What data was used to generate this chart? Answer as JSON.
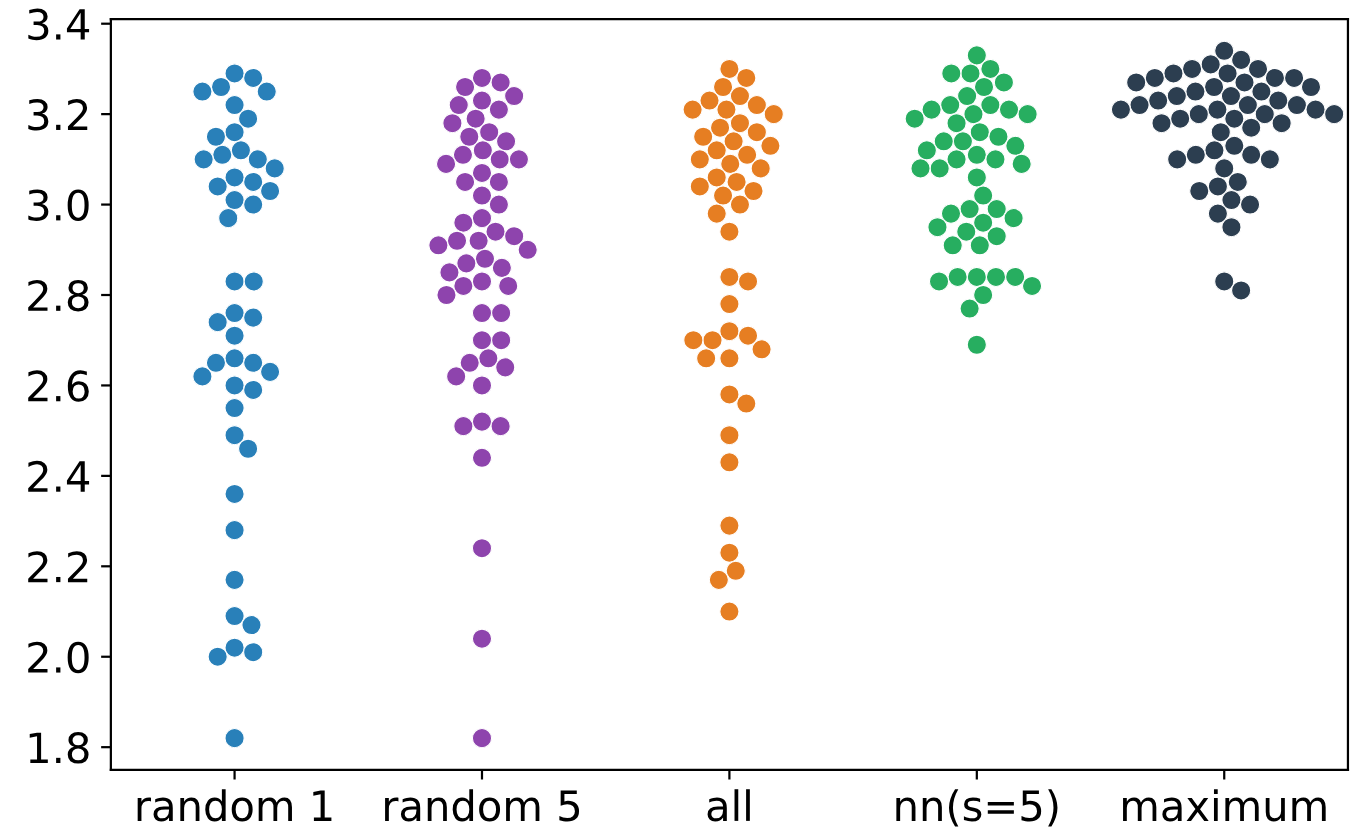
{
  "chart_data": {
    "type": "scatter",
    "categories": [
      "random 1",
      "random 5",
      "all",
      "nn(s=5)",
      "maximum"
    ],
    "ylim": [
      1.75,
      3.41
    ],
    "yticks": [
      1.8,
      {
        "value": 2,
        "label": "2.0"
      },
      2.2,
      2.4,
      2.6,
      2.8,
      {
        "value": 3,
        "label": "3.0"
      },
      3.2,
      3.4
    ],
    "grid": false,
    "marker": "circle",
    "series": [
      {
        "color": "#2980b9",
        "x": [
          "random 1",
          "random 1",
          "random 1",
          "random 1",
          "random 1",
          "random 1",
          "random 1",
          "random 1",
          "random 1",
          "random 1",
          "random 1",
          "random 1",
          "random 1",
          "random 1",
          "random 1",
          "random 1",
          "random 1",
          "random 1",
          "random 1",
          "random 1",
          "random 1",
          "random 1",
          "random 1",
          "random 1",
          "random 1",
          "random 1",
          "random 1",
          "random 1",
          "random 1",
          "random 1",
          "random 1",
          "random 1",
          "random 1",
          "random 1",
          "random 1",
          "random 1",
          "random 1",
          "random 1",
          "random 1",
          "random 1",
          "random 1",
          "random 1",
          "random 1",
          "random 1",
          "random 1",
          "random 1"
        ],
        "values": [
          3.29,
          3.28,
          3.26,
          3.25,
          3.25,
          3.22,
          3.19,
          3.16,
          3.15,
          3.12,
          3.11,
          3.1,
          3.1,
          3.08,
          3.06,
          3.05,
          3.04,
          3.03,
          3.01,
          3.0,
          2.97,
          2.83,
          2.83,
          2.76,
          2.75,
          2.74,
          2.71,
          2.66,
          2.65,
          2.65,
          2.63,
          2.62,
          2.6,
          2.59,
          2.55,
          2.49,
          2.46,
          2.36,
          2.28,
          2.17,
          2.09,
          2.07,
          2.02,
          2.01,
          2.0,
          1.82
        ]
      },
      {
        "color": "#8e44ad",
        "x": [
          "random 5",
          "random 5",
          "random 5",
          "random 5",
          "random 5",
          "random 5",
          "random 5",
          "random 5",
          "random 5",
          "random 5",
          "random 5",
          "random 5",
          "random 5",
          "random 5",
          "random 5",
          "random 5",
          "random 5",
          "random 5",
          "random 5",
          "random 5",
          "random 5",
          "random 5",
          "random 5",
          "random 5",
          "random 5",
          "random 5",
          "random 5",
          "random 5",
          "random 5",
          "random 5",
          "random 5",
          "random 5",
          "random 5",
          "random 5",
          "random 5",
          "random 5",
          "random 5",
          "random 5",
          "random 5",
          "random 5",
          "random 5",
          "random 5",
          "random 5",
          "random 5",
          "random 5",
          "random 5",
          "random 5",
          "random 5",
          "random 5",
          "random 5",
          "random 5",
          "random 5",
          "random 5",
          "random 5"
        ],
        "values": [
          3.28,
          3.27,
          3.26,
          3.23,
          3.24,
          3.22,
          3.21,
          3.19,
          3.18,
          3.16,
          3.15,
          3.14,
          3.12,
          3.11,
          3.1,
          3.1,
          3.09,
          3.07,
          3.05,
          3.05,
          3.02,
          3.0,
          2.97,
          2.96,
          2.94,
          2.93,
          2.92,
          2.92,
          2.91,
          2.9,
          2.88,
          2.87,
          2.86,
          2.85,
          2.83,
          2.82,
          2.82,
          2.8,
          2.76,
          2.76,
          2.7,
          2.7,
          2.66,
          2.65,
          2.64,
          2.62,
          2.6,
          2.52,
          2.51,
          2.51,
          2.44,
          2.24,
          2.04,
          1.82
        ]
      },
      {
        "color": "#e67e22",
        "x": [
          "all",
          "all",
          "all",
          "all",
          "all",
          "all",
          "all",
          "all",
          "all",
          "all",
          "all",
          "all",
          "all",
          "all",
          "all",
          "all",
          "all",
          "all",
          "all",
          "all",
          "all",
          "all",
          "all",
          "all",
          "all",
          "all",
          "all",
          "all",
          "all",
          "all",
          "all",
          "all",
          "all",
          "all",
          "all",
          "all",
          "all",
          "all",
          "all",
          "all",
          "all",
          "all",
          "all",
          "all",
          "all",
          "all",
          "all"
        ],
        "values": [
          3.3,
          3.28,
          3.26,
          3.24,
          3.23,
          3.22,
          3.21,
          3.21,
          3.2,
          3.18,
          3.17,
          3.16,
          3.15,
          3.14,
          3.13,
          3.12,
          3.11,
          3.1,
          3.09,
          3.08,
          3.06,
          3.05,
          3.04,
          3.03,
          3.02,
          3.0,
          2.98,
          2.94,
          2.84,
          2.83,
          2.78,
          2.72,
          2.71,
          2.7,
          2.7,
          2.68,
          2.66,
          2.66,
          2.58,
          2.56,
          2.49,
          2.43,
          2.29,
          2.23,
          2.19,
          2.17,
          2.1
        ]
      },
      {
        "color": "#27ae60",
        "x": [
          "nn(s=5)",
          "nn(s=5)",
          "nn(s=5)",
          "nn(s=5)",
          "nn(s=5)",
          "nn(s=5)",
          "nn(s=5)",
          "nn(s=5)",
          "nn(s=5)",
          "nn(s=5)",
          "nn(s=5)",
          "nn(s=5)",
          "nn(s=5)",
          "nn(s=5)",
          "nn(s=5)",
          "nn(s=5)",
          "nn(s=5)",
          "nn(s=5)",
          "nn(s=5)",
          "nn(s=5)",
          "nn(s=5)",
          "nn(s=5)",
          "nn(s=5)",
          "nn(s=5)",
          "nn(s=5)",
          "nn(s=5)",
          "nn(s=5)",
          "nn(s=5)",
          "nn(s=5)",
          "nn(s=5)",
          "nn(s=5)",
          "nn(s=5)",
          "nn(s=5)",
          "nn(s=5)",
          "nn(s=5)",
          "nn(s=5)",
          "nn(s=5)",
          "nn(s=5)",
          "nn(s=5)",
          "nn(s=5)",
          "nn(s=5)",
          "nn(s=5)",
          "nn(s=5)",
          "nn(s=5)",
          "nn(s=5)",
          "nn(s=5)",
          "nn(s=5)",
          "nn(s=5)"
        ],
        "values": [
          3.33,
          3.3,
          3.29,
          3.29,
          3.27,
          3.26,
          3.24,
          3.22,
          3.22,
          3.21,
          3.21,
          3.2,
          3.2,
          3.19,
          3.18,
          3.16,
          3.15,
          3.14,
          3.14,
          3.13,
          3.12,
          3.11,
          3.1,
          3.1,
          3.09,
          3.08,
          3.08,
          3.06,
          3.02,
          2.99,
          2.99,
          2.98,
          2.97,
          2.96,
          2.95,
          2.94,
          2.93,
          2.91,
          2.91,
          2.84,
          2.84,
          2.84,
          2.84,
          2.83,
          2.82,
          2.8,
          2.77,
          2.69
        ]
      },
      {
        "color": "#2c3e50",
        "x": [
          "maximum",
          "maximum",
          "maximum",
          "maximum",
          "maximum",
          "maximum",
          "maximum",
          "maximum",
          "maximum",
          "maximum",
          "maximum",
          "maximum",
          "maximum",
          "maximum",
          "maximum",
          "maximum",
          "maximum",
          "maximum",
          "maximum",
          "maximum",
          "maximum",
          "maximum",
          "maximum",
          "maximum",
          "maximum",
          "maximum",
          "maximum",
          "maximum",
          "maximum",
          "maximum",
          "maximum",
          "maximum",
          "maximum",
          "maximum",
          "maximum",
          "maximum",
          "maximum",
          "maximum",
          "maximum",
          "maximum",
          "maximum",
          "maximum",
          "maximum",
          "maximum",
          "maximum",
          "maximum",
          "maximum",
          "maximum",
          "maximum",
          "maximum",
          "maximum"
        ],
        "values": [
          3.34,
          3.32,
          3.31,
          3.3,
          3.3,
          3.29,
          3.29,
          3.28,
          3.28,
          3.28,
          3.27,
          3.27,
          3.26,
          3.26,
          3.25,
          3.25,
          3.24,
          3.24,
          3.23,
          3.23,
          3.22,
          3.22,
          3.22,
          3.21,
          3.21,
          3.21,
          3.2,
          3.2,
          3.2,
          3.19,
          3.19,
          3.18,
          3.18,
          3.17,
          3.16,
          3.13,
          3.12,
          3.11,
          3.11,
          3.1,
          3.1,
          3.08,
          3.05,
          3.04,
          3.03,
          3.01,
          3.0,
          2.98,
          2.95,
          2.83,
          2.81
        ]
      }
    ]
  }
}
